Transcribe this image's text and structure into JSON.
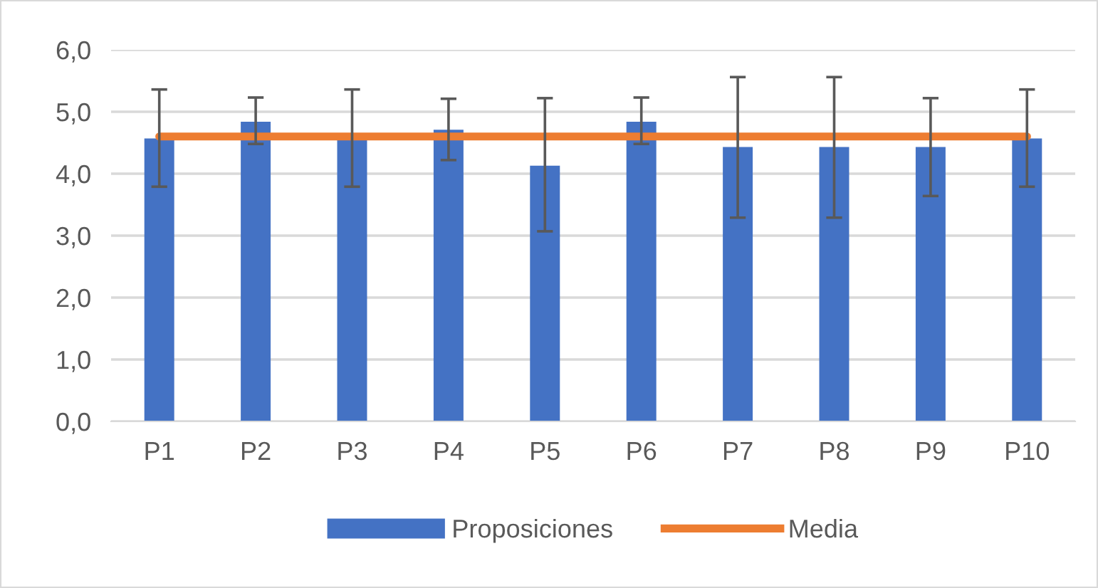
{
  "chart_data": {
    "type": "bar",
    "categories": [
      "P1",
      "P2",
      "P3",
      "P4",
      "P5",
      "P6",
      "P7",
      "P8",
      "P9",
      "P10"
    ],
    "series": [
      {
        "name": "Proposiciones",
        "color": "#4472c4",
        "values": [
          4.57,
          4.84,
          4.57,
          4.71,
          4.13,
          4.84,
          4.43,
          4.43,
          4.43,
          4.57
        ],
        "errors": [
          [
            3.79,
            5.36
          ],
          [
            4.48,
            5.23
          ],
          [
            3.79,
            5.36
          ],
          [
            4.22,
            5.21
          ],
          [
            3.07,
            5.22
          ],
          [
            4.48,
            5.23
          ],
          [
            3.29,
            5.56
          ],
          [
            3.29,
            5.56
          ],
          [
            3.64,
            5.22
          ],
          [
            3.79,
            5.36
          ]
        ]
      },
      {
        "name": "Media",
        "type": "line",
        "color": "#ed7d31",
        "values": [
          4.6,
          4.6,
          4.6,
          4.6,
          4.6,
          4.6,
          4.6,
          4.6,
          4.6,
          4.6
        ]
      }
    ],
    "ylim": [
      0,
      6
    ],
    "yticks": [
      {
        "value": 0,
        "label": "0,0"
      },
      {
        "value": 1,
        "label": "1,0"
      },
      {
        "value": 2,
        "label": "2,0"
      },
      {
        "value": 3,
        "label": "3,0"
      },
      {
        "value": 4,
        "label": "4,0"
      },
      {
        "value": 5,
        "label": "5,0"
      },
      {
        "value": 6,
        "label": "6,0"
      }
    ],
    "grid": "y",
    "legend": "bottom"
  }
}
